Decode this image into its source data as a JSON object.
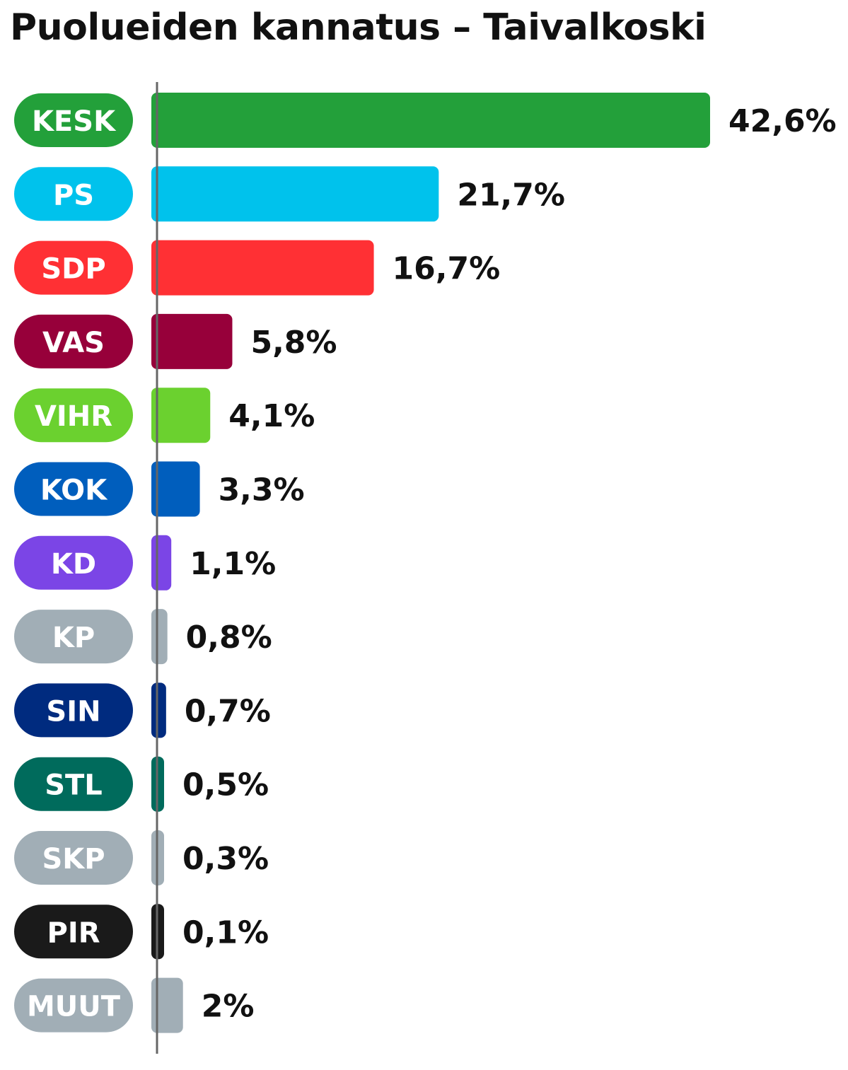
{
  "title": "Puolueiden kannatus – Taivalkoski",
  "chart_data": {
    "type": "bar",
    "orientation": "horizontal",
    "title": "Puolueiden kannatus – Taivalkoski",
    "xlabel": "",
    "ylabel": "",
    "unit": "%",
    "categories": [
      "KESK",
      "PS",
      "SDP",
      "VAS",
      "VIHR",
      "KOK",
      "KD",
      "KP",
      "SIN",
      "STL",
      "SKP",
      "PIR",
      "MUUT"
    ],
    "values": [
      42.6,
      21.7,
      16.7,
      5.8,
      4.1,
      3.3,
      1.1,
      0.8,
      0.7,
      0.5,
      0.3,
      0.1,
      2
    ],
    "value_labels": [
      "42,6%",
      "21,7%",
      "16,7%",
      "5,8%",
      "4,1%",
      "3,3%",
      "1,1%",
      "0,8%",
      "0,7%",
      "0,5%",
      "0,3%",
      "0,1%",
      "2%"
    ],
    "colors": [
      "#23a03a",
      "#00c2ec",
      "#ff3034",
      "#97003a",
      "#6bd12f",
      "#005ebd",
      "#7b45e6",
      "#a1aeb6",
      "#002b7f",
      "#006b5c",
      "#a1aeb6",
      "#1a1a1a",
      "#a1aeb6"
    ],
    "xlim": [
      0,
      42.6
    ],
    "grid": false,
    "legend": "none"
  }
}
